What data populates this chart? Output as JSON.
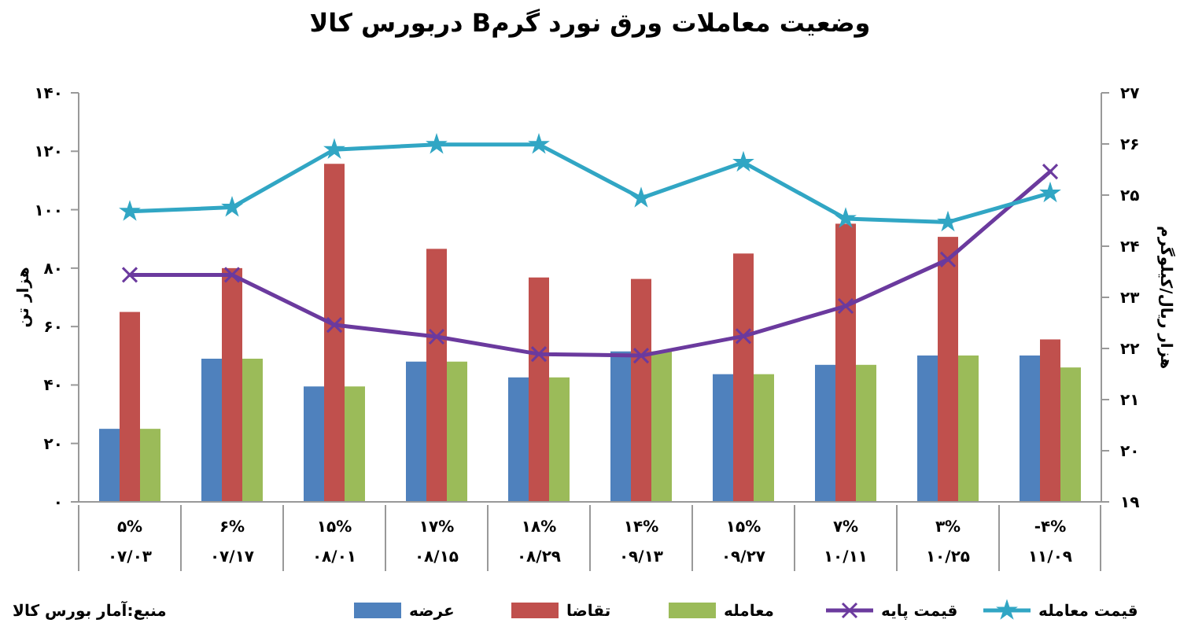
{
  "chart_data": {
    "type": "bar",
    "title": "وضعیت معاملات ورق نورد گرمB دربورس کالا",
    "ylabel": "هزار تن",
    "y2label": "هزار ریال/کیلوگرم",
    "categories": [
      "۵%\n۰۷/۰۳",
      "۶%\n۰۷/۱۷",
      "۱۵%\n۰۸/۰۱",
      "۱۷%\n۰۸/۱۵",
      "۱۸%\n۰۸/۲۹",
      "۱۴%\n۰۹/۱۳",
      "۱۵%\n۰۹/۲۷",
      "۷%\n۱۰/۱۱",
      "۳%\n۱۰/۲۵",
      "-۴%\n۱۱/۰۹"
    ],
    "series": [
      {
        "name": "عرضه",
        "color": "#4f81bd",
        "values": [
          25,
          49,
          39.5,
          48,
          42.6,
          51.5,
          43.7,
          46.9,
          50.1,
          50.1
        ]
      },
      {
        "name": "تقاضا",
        "color": "#c0504d",
        "values": [
          65,
          80,
          115.7,
          86.6,
          76.8,
          76.3,
          85,
          95.2,
          90.7,
          55.6
        ]
      },
      {
        "name": "معامله",
        "color": "#9bbb59",
        "values": [
          25,
          49,
          39.5,
          48,
          42.6,
          51.5,
          43.7,
          46.9,
          50.1,
          46
        ]
      },
      {
        "name": "قیمت پایه",
        "type": "line",
        "axis": "y2",
        "marker": "cross",
        "color": "#6b3a9e",
        "values": [
          23.44,
          23.44,
          22.46,
          22.23,
          21.89,
          21.86,
          22.24,
          22.83,
          23.74,
          25.46
        ]
      },
      {
        "name": "قیمت معامله",
        "type": "line",
        "axis": "y2",
        "marker": "star",
        "color": "#31a6c4",
        "values": [
          24.68,
          24.76,
          25.89,
          25.99,
          25.99,
          24.94,
          25.64,
          24.54,
          24.47,
          25.04
        ]
      }
    ],
    "ylim": [
      0,
      140
    ],
    "yticks": [
      {
        "value": 0,
        "label": "۰"
      },
      {
        "value": 20,
        "label": "۲۰"
      },
      {
        "value": 40,
        "label": "۴۰"
      },
      {
        "value": 60,
        "label": "۶۰"
      },
      {
        "value": 80,
        "label": "۸۰"
      },
      {
        "value": 100,
        "label": "۱۰۰"
      },
      {
        "value": 120,
        "label": "۱۲۰"
      },
      {
        "value": 140,
        "label": "۱۴۰"
      }
    ],
    "y2lim": [
      19,
      27
    ],
    "y2ticks": [
      {
        "value": 19,
        "label": "۱۹"
      },
      {
        "value": 20,
        "label": "۲۰"
      },
      {
        "value": 21,
        "label": "۲۱"
      },
      {
        "value": 22,
        "label": "۲۲"
      },
      {
        "value": 23,
        "label": "۲۳"
      },
      {
        "value": 24,
        "label": "۲۴"
      },
      {
        "value": 25,
        "label": "۲۵"
      },
      {
        "value": 26,
        "label": "۲۶"
      },
      {
        "value": 27,
        "label": "۲۷"
      }
    ],
    "legend": "bottom",
    "grid": false,
    "annotations": [
      "منبع:آمار بورس کالا"
    ]
  }
}
